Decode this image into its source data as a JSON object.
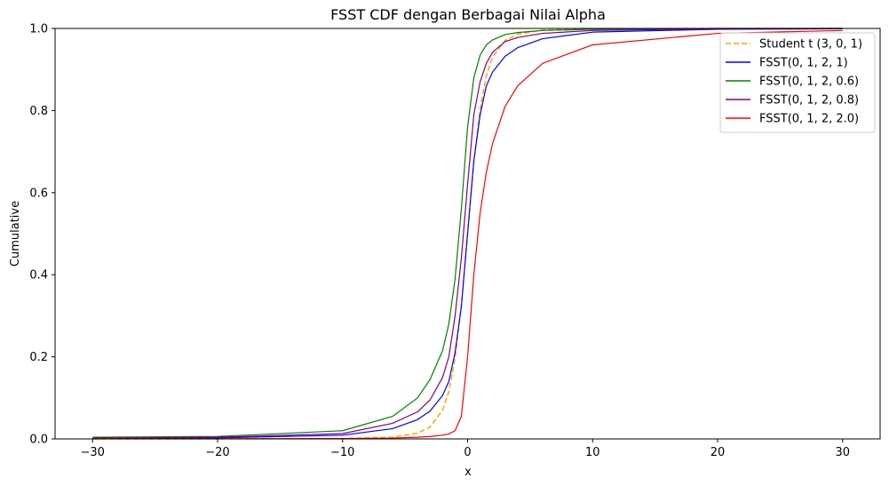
{
  "chart_data": {
    "type": "line",
    "title": "FSST CDF dengan Berbagai Nilai Alpha",
    "xlabel": "x",
    "ylabel": "Cumulative",
    "xlim": [
      -33,
      33
    ],
    "ylim": [
      0,
      1
    ],
    "xticks": [
      -30,
      -20,
      -10,
      0,
      10,
      20,
      30
    ],
    "yticks": [
      0.0,
      0.2,
      0.4,
      0.6,
      0.8,
      1.0
    ],
    "grid": false,
    "legend_position": "top-right",
    "x": [
      -30,
      -20,
      -10,
      -6,
      -4,
      -3,
      -2,
      -1.5,
      -1,
      -0.5,
      0,
      0.5,
      1,
      1.5,
      2,
      3,
      4,
      6,
      10,
      20,
      30
    ],
    "series": [
      {
        "name": "Student t (3, 0, 1)",
        "color": "#FFA500",
        "dash": "dashed",
        "values": [
          5e-05,
          0.0001,
          0.0008,
          0.004,
          0.014,
          0.029,
          0.07,
          0.115,
          0.196,
          0.326,
          0.5,
          0.674,
          0.804,
          0.885,
          0.93,
          0.971,
          0.986,
          0.996,
          0.999,
          1.0,
          1.0
        ]
      },
      {
        "name": "FSST(0, 1, 2, 1)",
        "color": "#0000FF",
        "dash": "solid",
        "values": [
          0.001,
          0.0025,
          0.009,
          0.025,
          0.047,
          0.068,
          0.106,
          0.14,
          0.211,
          0.322,
          0.5,
          0.678,
          0.789,
          0.86,
          0.894,
          0.932,
          0.953,
          0.975,
          0.991,
          0.998,
          0.999
        ]
      },
      {
        "name": "FSST(0, 1, 2, 0.6)",
        "color": "#008000",
        "dash": "solid",
        "values": [
          0.004,
          0.006,
          0.02,
          0.055,
          0.1,
          0.145,
          0.215,
          0.28,
          0.39,
          0.56,
          0.76,
          0.88,
          0.935,
          0.96,
          0.972,
          0.985,
          0.99,
          0.995,
          0.998,
          1.0,
          1.0
        ]
      },
      {
        "name": "FSST(0, 1, 2, 0.8)",
        "color": "#800080",
        "dash": "solid",
        "values": [
          0.002,
          0.004,
          0.013,
          0.038,
          0.066,
          0.095,
          0.15,
          0.2,
          0.3,
          0.44,
          0.62,
          0.79,
          0.87,
          0.915,
          0.942,
          0.968,
          0.978,
          0.988,
          0.995,
          0.999,
          1.0
        ]
      },
      {
        "name": "FSST(0, 1, 2, 2.0)",
        "color": "#FF0000",
        "dash": "solid",
        "values": [
          0.0002,
          0.0003,
          0.0008,
          0.002,
          0.004,
          0.006,
          0.009,
          0.012,
          0.02,
          0.055,
          0.2,
          0.4,
          0.55,
          0.65,
          0.72,
          0.81,
          0.86,
          0.915,
          0.96,
          0.988,
          0.995
        ]
      }
    ]
  }
}
